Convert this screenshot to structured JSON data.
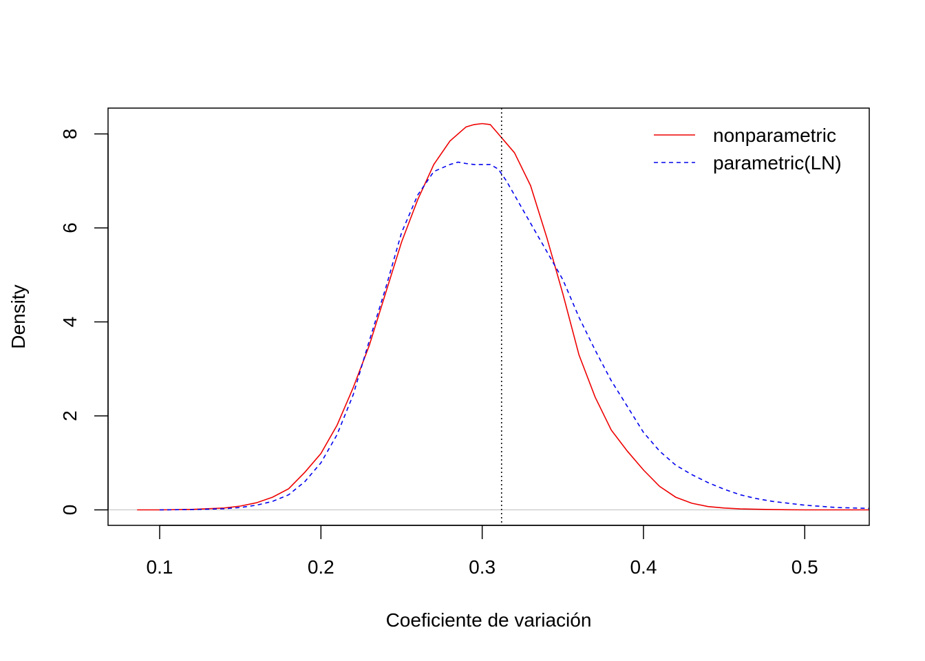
{
  "chart_data": {
    "type": "line",
    "title": "",
    "xlabel": "Coeficiente de variación",
    "ylabel": "Density",
    "xlim": [
      0.068,
      0.54
    ],
    "ylim": [
      -0.33,
      8.55
    ],
    "x_ticks": [
      0.1,
      0.2,
      0.3,
      0.4,
      0.5
    ],
    "x_tick_labels": [
      "0.1",
      "0.2",
      "0.3",
      "0.4",
      "0.5"
    ],
    "y_ticks": [
      0,
      2,
      4,
      6,
      8
    ],
    "y_tick_labels": [
      "0",
      "2",
      "4",
      "6",
      "8"
    ],
    "grid": false,
    "legend_position": "top-right",
    "reference_line": {
      "orientation": "vertical",
      "x": 0.312,
      "style": "dotted",
      "color": "#000000"
    },
    "baseline": {
      "y": 0,
      "color": "#bebebe"
    },
    "series": [
      {
        "name": "nonparametric",
        "color": "#ee0000",
        "line_style": "solid",
        "x": [
          0.086,
          0.1,
          0.12,
          0.14,
          0.15,
          0.16,
          0.17,
          0.18,
          0.19,
          0.2,
          0.21,
          0.22,
          0.23,
          0.24,
          0.25,
          0.26,
          0.27,
          0.28,
          0.29,
          0.295,
          0.3,
          0.305,
          0.31,
          0.315,
          0.32,
          0.33,
          0.34,
          0.35,
          0.36,
          0.37,
          0.38,
          0.39,
          0.4,
          0.41,
          0.42,
          0.43,
          0.44,
          0.45,
          0.46,
          0.48,
          0.5,
          0.54
        ],
        "y": [
          0,
          0,
          0.01,
          0.04,
          0.08,
          0.15,
          0.27,
          0.45,
          0.8,
          1.2,
          1.8,
          2.6,
          3.5,
          4.6,
          5.7,
          6.6,
          7.35,
          7.85,
          8.15,
          8.2,
          8.22,
          8.2,
          8.0,
          7.8,
          7.6,
          6.9,
          5.8,
          4.6,
          3.3,
          2.4,
          1.7,
          1.25,
          0.85,
          0.5,
          0.27,
          0.14,
          0.07,
          0.04,
          0.02,
          0.005,
          0,
          0
        ]
      },
      {
        "name": "parametric(LN)",
        "color": "#0000ee",
        "line_style": "dashed",
        "x": [
          0.1,
          0.12,
          0.14,
          0.15,
          0.16,
          0.17,
          0.18,
          0.19,
          0.2,
          0.21,
          0.22,
          0.23,
          0.24,
          0.25,
          0.26,
          0.27,
          0.28,
          0.285,
          0.29,
          0.295,
          0.3,
          0.305,
          0.31,
          0.315,
          0.32,
          0.33,
          0.34,
          0.35,
          0.36,
          0.37,
          0.38,
          0.39,
          0.4,
          0.41,
          0.42,
          0.43,
          0.44,
          0.45,
          0.46,
          0.47,
          0.48,
          0.5,
          0.52,
          0.54
        ],
        "y": [
          0,
          0.005,
          0.025,
          0.05,
          0.1,
          0.18,
          0.32,
          0.6,
          1.0,
          1.6,
          2.45,
          3.6,
          4.7,
          5.9,
          6.7,
          7.2,
          7.35,
          7.4,
          7.37,
          7.35,
          7.35,
          7.35,
          7.25,
          7.0,
          6.7,
          6.1,
          5.5,
          4.9,
          4.1,
          3.4,
          2.75,
          2.2,
          1.65,
          1.25,
          0.95,
          0.75,
          0.58,
          0.44,
          0.32,
          0.24,
          0.18,
          0.1,
          0.05,
          0.03
        ]
      }
    ]
  }
}
